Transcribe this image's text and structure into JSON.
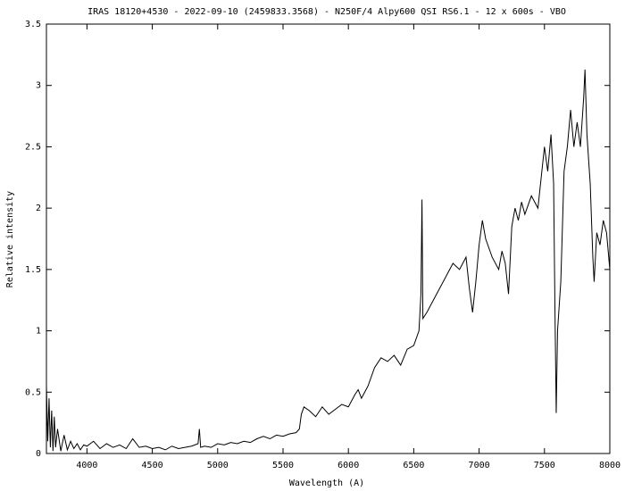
{
  "chart_data": {
    "type": "line",
    "title": "IRAS 18120+4530 - 2022-09-10 (2459833.3568) - N250F/4 Alpy600 QSI RS6.1 - 12 x 600s - VBO",
    "xlabel": "Wavelength (A)",
    "ylabel": "Relative intensity",
    "color": "#000000",
    "xlim": [
      3690,
      8000
    ],
    "ylim": [
      0,
      3.5
    ],
    "xticks": [
      4000,
      4500,
      5000,
      5500,
      6000,
      6500,
      7000,
      7500,
      8000
    ],
    "yticks": [
      0,
      0.5,
      1,
      1.5,
      2,
      2.5,
      3,
      3.5
    ],
    "x": [
      3690,
      3700,
      3710,
      3720,
      3730,
      3740,
      3750,
      3760,
      3775,
      3800,
      3825,
      3850,
      3875,
      3900,
      3925,
      3950,
      3975,
      4000,
      4050,
      4100,
      4150,
      4200,
      4250,
      4300,
      4350,
      4400,
      4450,
      4500,
      4550,
      4600,
      4650,
      4700,
      4750,
      4800,
      4850,
      4860,
      4870,
      4900,
      4950,
      5000,
      5050,
      5100,
      5150,
      5200,
      5250,
      5300,
      5350,
      5400,
      5450,
      5500,
      5550,
      5600,
      5625,
      5640,
      5660,
      5700,
      5750,
      5800,
      5850,
      5900,
      5950,
      6000,
      6050,
      6075,
      6100,
      6150,
      6200,
      6250,
      6300,
      6350,
      6400,
      6450,
      6500,
      6540,
      6555,
      6563,
      6570,
      6600,
      6650,
      6700,
      6750,
      6800,
      6850,
      6900,
      6925,
      6950,
      6975,
      7000,
      7025,
      7050,
      7100,
      7150,
      7175,
      7200,
      7225,
      7250,
      7275,
      7300,
      7325,
      7350,
      7400,
      7450,
      7475,
      7500,
      7525,
      7550,
      7570,
      7580,
      7590,
      7600,
      7625,
      7650,
      7675,
      7700,
      7725,
      7750,
      7775,
      7800,
      7810,
      7825,
      7850,
      7870,
      7880,
      7900,
      7925,
      7950,
      7975,
      8000
    ],
    "values": [
      0.55,
      0.1,
      0.45,
      0.05,
      0.35,
      0.02,
      0.3,
      0.05,
      0.2,
      0.02,
      0.15,
      0.03,
      0.1,
      0.04,
      0.08,
      0.03,
      0.07,
      0.06,
      0.1,
      0.04,
      0.08,
      0.05,
      0.07,
      0.04,
      0.12,
      0.05,
      0.06,
      0.04,
      0.05,
      0.03,
      0.06,
      0.04,
      0.05,
      0.06,
      0.08,
      0.2,
      0.05,
      0.06,
      0.05,
      0.08,
      0.07,
      0.09,
      0.08,
      0.1,
      0.09,
      0.12,
      0.14,
      0.12,
      0.15,
      0.14,
      0.16,
      0.17,
      0.2,
      0.32,
      0.38,
      0.35,
      0.3,
      0.38,
      0.32,
      0.36,
      0.4,
      0.38,
      0.48,
      0.52,
      0.45,
      0.55,
      0.7,
      0.78,
      0.75,
      0.8,
      0.72,
      0.85,
      0.88,
      1.0,
      1.3,
      2.07,
      1.1,
      1.15,
      1.25,
      1.35,
      1.45,
      1.55,
      1.5,
      1.6,
      1.35,
      1.15,
      1.4,
      1.7,
      1.9,
      1.75,
      1.6,
      1.5,
      1.65,
      1.55,
      1.3,
      1.85,
      2.0,
      1.9,
      2.05,
      1.95,
      2.1,
      2.0,
      2.25,
      2.5,
      2.3,
      2.6,
      2.2,
      1.2,
      0.33,
      1.0,
      1.4,
      2.3,
      2.5,
      2.8,
      2.5,
      2.7,
      2.5,
      2.9,
      3.13,
      2.6,
      2.2,
      1.6,
      1.4,
      1.8,
      1.7,
      1.9,
      1.8,
      1.5
    ]
  }
}
